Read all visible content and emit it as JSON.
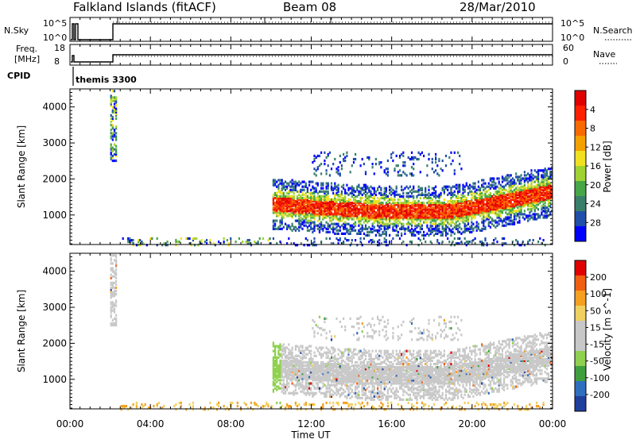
{
  "header": {
    "station": "Falkland Islands (fitACF)",
    "beam": "Beam 08",
    "date": "28/Mar/2010"
  },
  "strip1": {
    "left_label": "N.Sky",
    "left_ticks": [
      "10^5",
      "10^0"
    ],
    "right_label": "N.Search",
    "right_ticks": [
      "10^5",
      "10^0"
    ]
  },
  "strip2": {
    "left_label_1": "Freq.",
    "left_label_2": "[MHz]",
    "left_ticks": [
      "18",
      "8"
    ],
    "right_label": "Nave",
    "right_ticks": [
      "60",
      "0"
    ]
  },
  "cpid": {
    "label": "CPID",
    "value": "themis 3300"
  },
  "colors": {
    "power": [
      "#0000ff",
      "#1f4fa8",
      "#3a7f6a",
      "#46a648",
      "#a0d232",
      "#f0e020",
      "#f4a000",
      "#f86a00",
      "#ff2000",
      "#e00000"
    ],
    "velocity": [
      "#1f3f9c",
      "#2f6fbf",
      "#3f9f3f",
      "#8fd04f",
      "#c8c8c8",
      "#c8c8c8",
      "#f0d060",
      "#f5a020",
      "#f06010",
      "#e00000"
    ]
  },
  "chart_data": [
    {
      "type": "heatmap",
      "name": "Power",
      "ylabel": "Slant Range [km]",
      "ylim": [
        180,
        4500
      ],
      "xlim": [
        0,
        24
      ],
      "yticks": [
        "1000",
        "2000",
        "3000",
        "4000"
      ],
      "colorbar_label": "Power [dB]",
      "colorbar_ticks": [
        "4",
        "8",
        "12",
        "16",
        "20",
        "24",
        "28"
      ],
      "colorbar_range": [
        0,
        30
      ]
    },
    {
      "type": "heatmap",
      "name": "Velocity",
      "ylabel": "Slant Range [km]",
      "ylim": [
        180,
        4500
      ],
      "xlim": [
        0,
        24
      ],
      "yticks": [
        "1000",
        "2000",
        "3000",
        "4000"
      ],
      "colorbar_label": "Velocity [m s^-1]",
      "colorbar_ticks": [
        "200",
        "100",
        "50",
        "15",
        "-15",
        "-50",
        "-100",
        "-200"
      ]
    }
  ],
  "x_axis": {
    "label": "Time UT",
    "ticks": [
      "00:00",
      "04:00",
      "08:00",
      "12:00",
      "16:00",
      "20:00",
      "00:00"
    ]
  }
}
